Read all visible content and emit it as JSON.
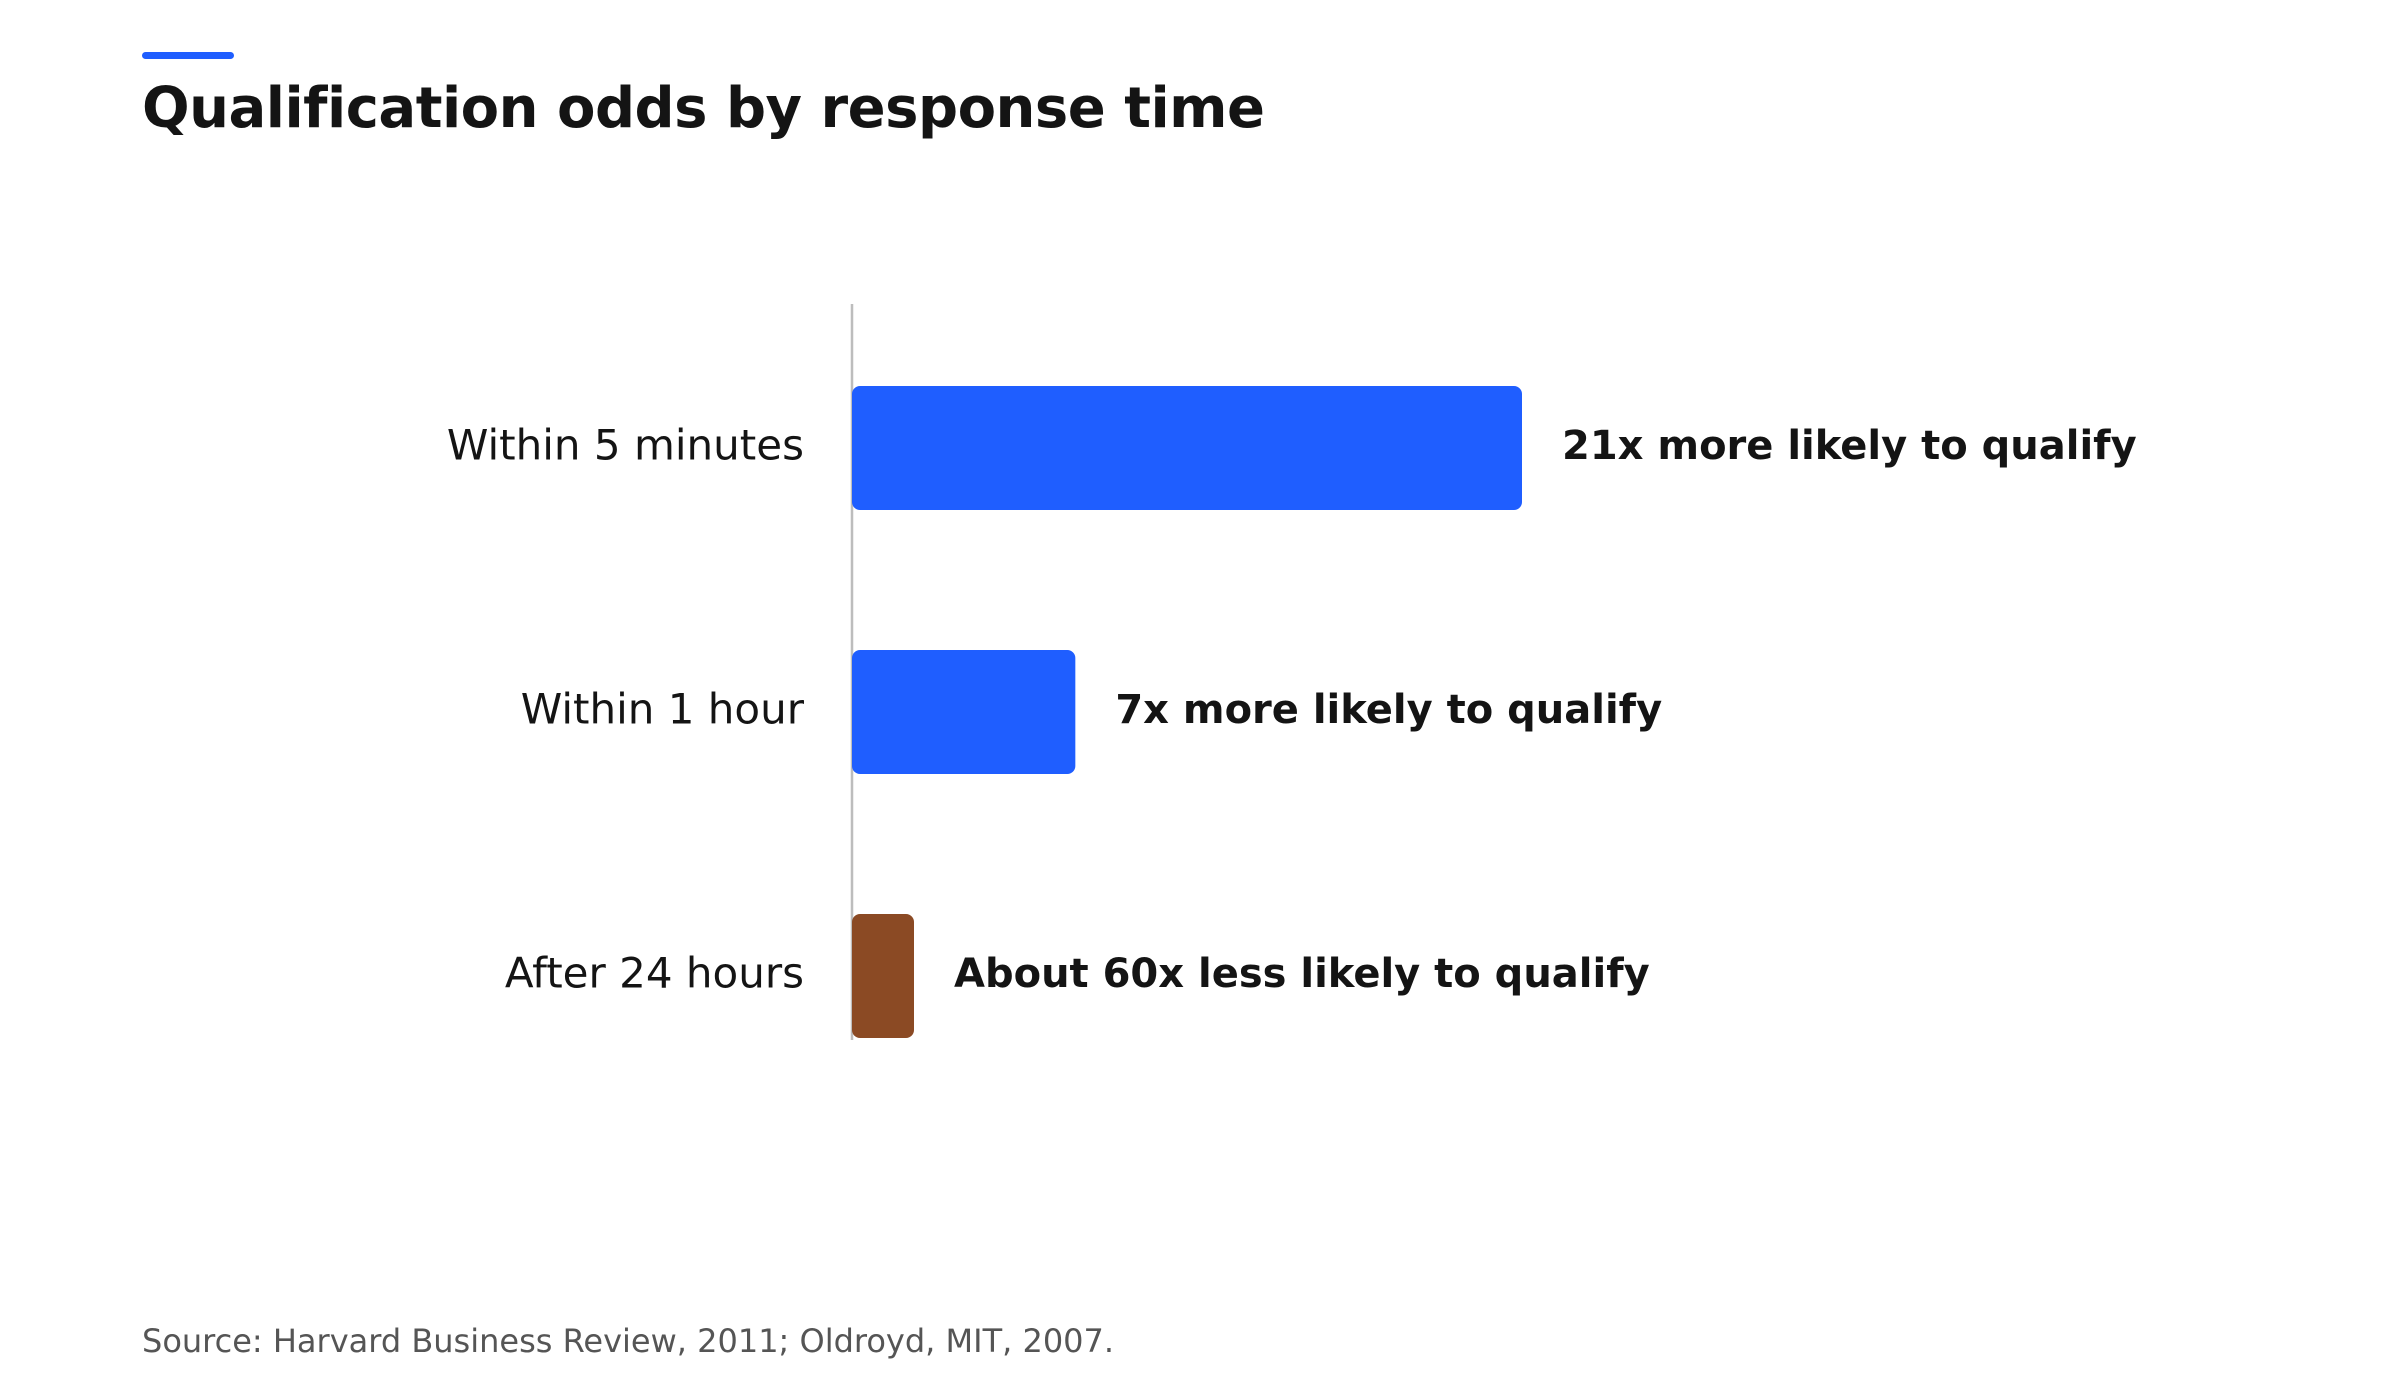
{
  "title": "Qualification odds by response time",
  "source": "Source: Harvard Business Review, 2011; Oldroyd, MIT, 2007.",
  "colors": {
    "accent": "#1F5EFF",
    "positive": "#1F5EFF",
    "negative": "#8B4A24",
    "axis": "#BDBDBD",
    "text": "#141414"
  },
  "chart_data": {
    "type": "bar",
    "orientation": "horizontal",
    "title": "Qualification odds by response time",
    "xlabel": "",
    "ylabel": "",
    "grid": false,
    "categories": [
      "Within 5 minutes",
      "Within 1 hour",
      "After 24 hours"
    ],
    "values": [
      21,
      7,
      1
    ],
    "value_labels": [
      "21x more likely to qualify",
      "7x more likely to qualify",
      "About 60x less likely to qualify"
    ],
    "bar_colors": [
      "#1F5EFF",
      "#1F5EFF",
      "#8B4A24"
    ],
    "xlim": [
      0,
      21
    ]
  }
}
